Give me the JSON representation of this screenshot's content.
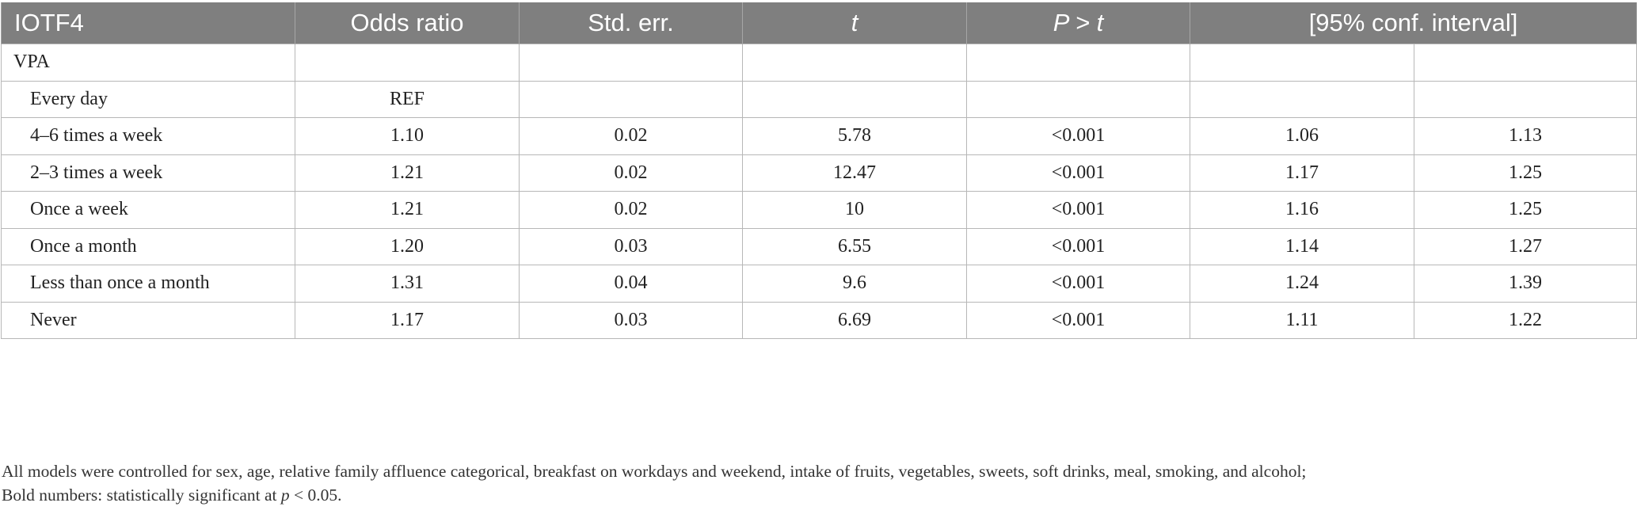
{
  "table": {
    "headers": [
      {
        "text": "IOTF4",
        "italic": false
      },
      {
        "text": "Odds ratio",
        "italic": false
      },
      {
        "text": "Std. err.",
        "italic": false
      },
      {
        "text": "t",
        "italic": true
      },
      {
        "text": "P > t",
        "italic": true
      },
      {
        "text": "[95% conf. interval]",
        "italic": false
      }
    ],
    "group_label": "VPA",
    "rows": [
      {
        "label": "Every day",
        "odds": "REF",
        "se": "",
        "t": "",
        "p": "",
        "ci_low": "",
        "ci_high": ""
      },
      {
        "label": "4–6 times a week",
        "odds": "1.10",
        "se": "0.02",
        "t": "5.78",
        "p": "<0.001",
        "ci_low": "1.06",
        "ci_high": "1.13"
      },
      {
        "label": "2–3 times a week",
        "odds": "1.21",
        "se": "0.02",
        "t": "12.47",
        "p": "<0.001",
        "ci_low": "1.17",
        "ci_high": "1.25"
      },
      {
        "label": "Once a week",
        "odds": "1.21",
        "se": "0.02",
        "t": "10",
        "p": "<0.001",
        "ci_low": "1.16",
        "ci_high": "1.25"
      },
      {
        "label": "Once a month",
        "odds": "1.20",
        "se": "0.03",
        "t": "6.55",
        "p": "<0.001",
        "ci_low": "1.14",
        "ci_high": "1.27"
      },
      {
        "label": "Less than once a month",
        "odds": "1.31",
        "se": "0.04",
        "t": "9.6",
        "p": "<0.001",
        "ci_low": "1.24",
        "ci_high": "1.39"
      },
      {
        "label": "Never",
        "odds": "1.17",
        "se": "0.03",
        "t": "6.69",
        "p": "<0.001",
        "ci_low": "1.11",
        "ci_high": "1.22"
      }
    ]
  },
  "footnote": {
    "line1": "All models were controlled for sex, age, relative family affluence categorical, breakfast on workdays and weekend, intake of fruits, vegetables, sweets, soft drinks, meal, smoking, and alcohol;",
    "line2_prefix": "Bold numbers: statistically significant at ",
    "line2_var": "p",
    "line2_suffix": " < 0.05."
  },
  "colors": {
    "header_bg": "#7f7f7f",
    "header_text": "#ffffff",
    "grid_line": "#b7b7b7"
  }
}
